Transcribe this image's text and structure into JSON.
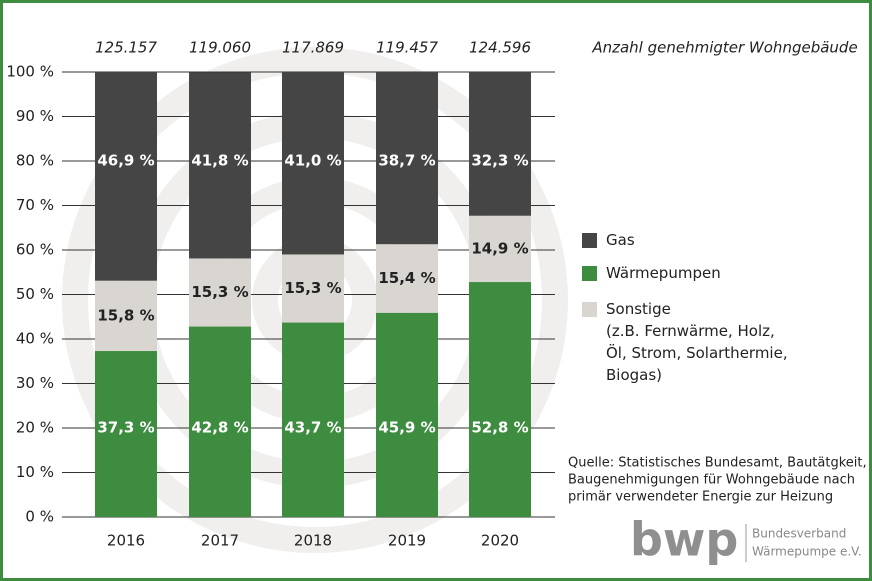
{
  "chart_data": {
    "type": "stacked-bar",
    "categories": [
      "2016",
      "2017",
      "2018",
      "2019",
      "2020"
    ],
    "series": [
      {
        "name": "Wärmepumpen",
        "color": "#3d8c40",
        "values": [
          37.3,
          42.8,
          43.7,
          45.9,
          52.8
        ],
        "value_labels": [
          "37,3 %",
          "42,8 %",
          "43,7 %",
          "45,9 %",
          "52,8 %"
        ]
      },
      {
        "name": "Sonstige\n(z.B. Fernwärme, Holz,\nÖl, Strom, Solarthermie,\nBiogas)",
        "color": "#d9d6d2",
        "values": [
          15.8,
          15.3,
          15.3,
          15.4,
          14.9
        ],
        "value_labels": [
          "15,8 %",
          "15,3 %",
          "15,3 %",
          "15,4 %",
          "14,9 %"
        ]
      },
      {
        "name": "Gas",
        "color": "#454545",
        "values": [
          46.9,
          41.8,
          41.0,
          38.7,
          32.3
        ],
        "value_labels": [
          "46,9 %",
          "41,8 %",
          "41,0 %",
          "38,7 %",
          "32,3 %"
        ]
      }
    ],
    "legend_order": [
      2,
      0,
      1
    ],
    "totals": {
      "label": "Anzahl genehmigter Wohngebäude",
      "values": [
        125157,
        119060,
        117869,
        119457,
        124596
      ],
      "value_labels": [
        "125.157",
        "119.060",
        "117.869",
        "119.457",
        "124.596"
      ]
    },
    "ylim": [
      0,
      100
    ],
    "yticks": [
      {
        "value": 0,
        "label": "0 %"
      },
      {
        "value": 10,
        "label": "10 %"
      },
      {
        "value": 20,
        "label": "20 %"
      },
      {
        "value": 30,
        "label": "30 %"
      },
      {
        "value": 40,
        "label": "40 %"
      },
      {
        "value": 50,
        "label": "50 %"
      },
      {
        "value": 60,
        "label": "60 %"
      },
      {
        "value": 70,
        "label": "70 %"
      },
      {
        "value": 80,
        "label": "80 %"
      },
      {
        "value": 90,
        "label": "90 %"
      },
      {
        "value": 100,
        "label": "100 %"
      }
    ],
    "grid": true,
    "source": [
      "Quelle: Statistisches Bundesamt, Bautätgkeit,",
      "Baugenehmigungen für Wohngebäude nach",
      "primär verwendeter Energie zur Heizung"
    ],
    "logo": {
      "mark": "bwp",
      "lines": [
        "Bundesverband",
        "Wärmepumpe e.V."
      ]
    }
  }
}
